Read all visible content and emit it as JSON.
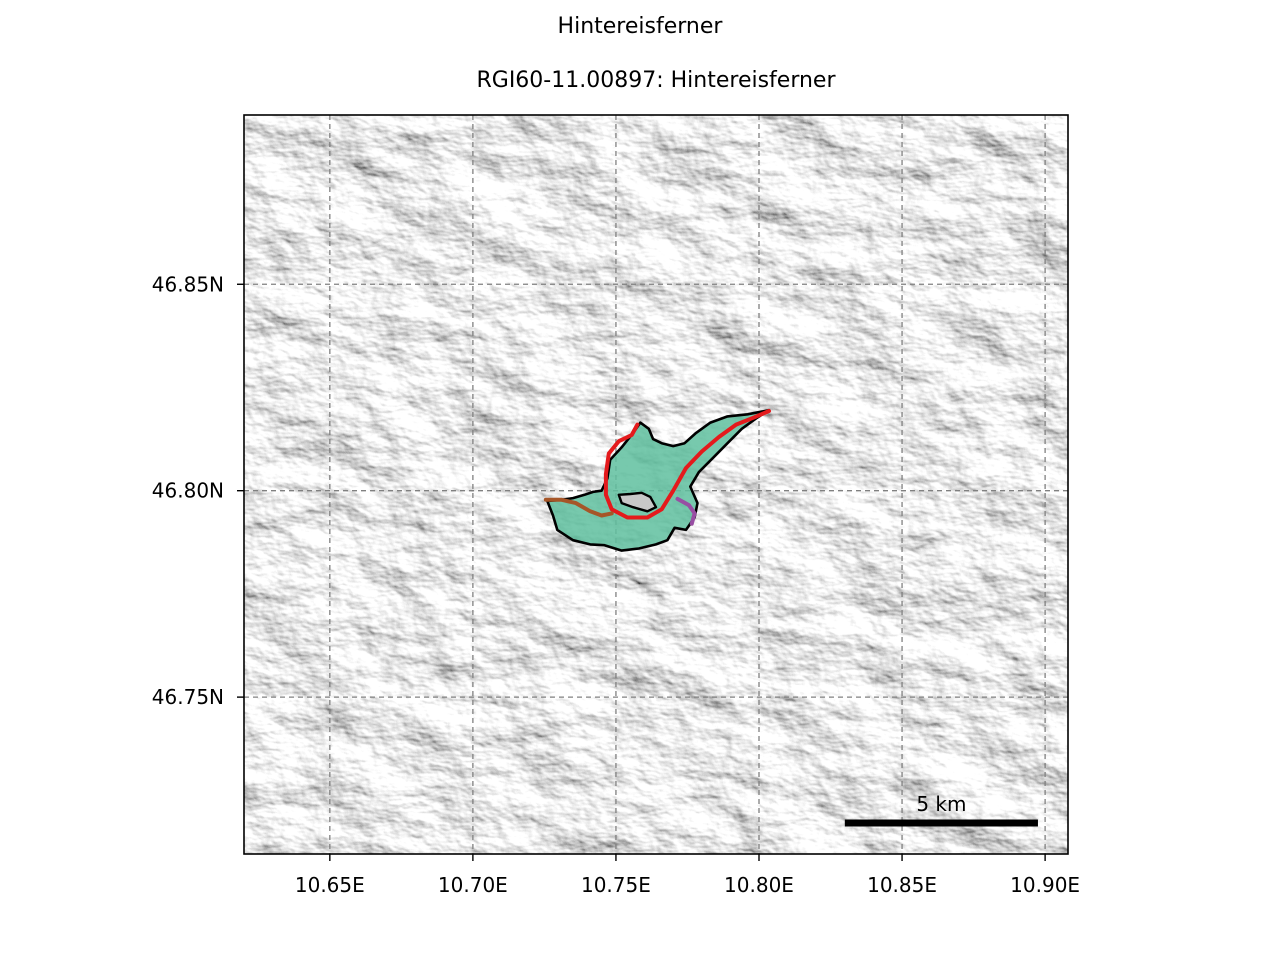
{
  "figure": {
    "suptitle": "Hintereisferner",
    "title": "RGI60-11.00897: Hintereisferner"
  },
  "map": {
    "extent": {
      "lon_min": 10.62,
      "lon_max": 10.908,
      "lat_min": 46.712,
      "lat_max": 46.891
    },
    "x_ticks": [
      {
        "value": 10.65,
        "label": "10.65E"
      },
      {
        "value": 10.7,
        "label": "10.70E"
      },
      {
        "value": 10.75,
        "label": "10.75E"
      },
      {
        "value": 10.8,
        "label": "10.80E"
      },
      {
        "value": 10.85,
        "label": "10.85E"
      },
      {
        "value": 10.9,
        "label": "10.90E"
      }
    ],
    "y_ticks": [
      {
        "value": 46.85,
        "label": "46.85N"
      },
      {
        "value": 46.8,
        "label": "46.80N"
      },
      {
        "value": 46.75,
        "label": "46.75N"
      }
    ],
    "grid": true,
    "background": "hillshade (grayscale terrain)",
    "glacier": {
      "fill_color": "#5fbf9f",
      "outline_color": "#000000",
      "outline": [
        [
          10.726,
          46.7975
        ],
        [
          10.731,
          46.7978
        ],
        [
          10.735,
          46.7982
        ],
        [
          10.739,
          46.799
        ],
        [
          10.742,
          46.7997
        ],
        [
          10.745,
          46.8
        ],
        [
          10.747,
          46.803
        ],
        [
          10.748,
          46.8075
        ],
        [
          10.752,
          46.8105
        ],
        [
          10.756,
          46.814
        ],
        [
          10.7585,
          46.8165
        ],
        [
          10.7615,
          46.815
        ],
        [
          10.763,
          46.8125
        ],
        [
          10.766,
          46.8115
        ],
        [
          10.77,
          46.8108
        ],
        [
          10.774,
          46.8115
        ],
        [
          10.778,
          46.814
        ],
        [
          10.783,
          46.8165
        ],
        [
          10.789,
          46.818
        ],
        [
          10.796,
          46.8185
        ],
        [
          10.8035,
          46.8195
        ],
        [
          10.799,
          46.8175
        ],
        [
          10.794,
          46.815
        ],
        [
          10.789,
          46.8115
        ],
        [
          10.784,
          46.808
        ],
        [
          10.779,
          46.8045
        ],
        [
          10.776,
          46.801
        ],
        [
          10.7785,
          46.797
        ],
        [
          10.7775,
          46.7935
        ],
        [
          10.7745,
          46.7905
        ],
        [
          10.7705,
          46.791
        ],
        [
          10.768,
          46.788
        ],
        [
          10.764,
          46.787
        ],
        [
          10.758,
          46.786
        ],
        [
          10.752,
          46.7855
        ],
        [
          10.746,
          46.7868
        ],
        [
          10.741,
          46.787
        ],
        [
          10.735,
          46.788
        ],
        [
          10.7295,
          46.7905
        ],
        [
          10.728,
          46.794
        ]
      ],
      "nunatak": [
        [
          10.751,
          46.799
        ],
        [
          10.755,
          46.7992
        ],
        [
          10.759,
          46.7995
        ],
        [
          10.762,
          46.7985
        ],
        [
          10.764,
          46.796
        ],
        [
          10.761,
          46.795
        ],
        [
          10.756,
          46.796
        ],
        [
          10.752,
          46.797
        ]
      ]
    },
    "flowlines": [
      {
        "color": "#e41a1c",
        "points": [
          [
            10.7575,
            46.816
          ],
          [
            10.7555,
            46.8135
          ],
          [
            10.751,
            46.812
          ],
          [
            10.7475,
            46.809
          ],
          [
            10.7465,
            46.804
          ],
          [
            10.7465,
            46.799
          ],
          [
            10.7485,
            46.7955
          ],
          [
            10.754,
            46.7935
          ],
          [
            10.761,
            46.7935
          ],
          [
            10.766,
            46.7955
          ],
          [
            10.77,
            46.8
          ],
          [
            10.7745,
            46.8055
          ],
          [
            10.78,
            46.8095
          ],
          [
            10.786,
            46.813
          ],
          [
            10.792,
            46.816
          ],
          [
            10.7985,
            46.8178
          ],
          [
            10.8035,
            46.8193
          ]
        ]
      },
      {
        "color": "#a65628",
        "points": [
          [
            10.7255,
            46.7978
          ],
          [
            10.731,
            46.7978
          ],
          [
            10.736,
            46.797
          ],
          [
            10.741,
            46.795
          ],
          [
            10.745,
            46.794
          ],
          [
            10.7485,
            46.7945
          ]
        ]
      },
      {
        "color": "#984ea3",
        "points": [
          [
            10.7715,
            46.798
          ],
          [
            10.7755,
            46.7965
          ],
          [
            10.7775,
            46.7945
          ],
          [
            10.7765,
            46.792
          ]
        ]
      }
    ],
    "scalebar": {
      "label": "5 km",
      "lon_start": 10.83,
      "lon_end": 10.8975,
      "lat": 46.7195
    }
  }
}
